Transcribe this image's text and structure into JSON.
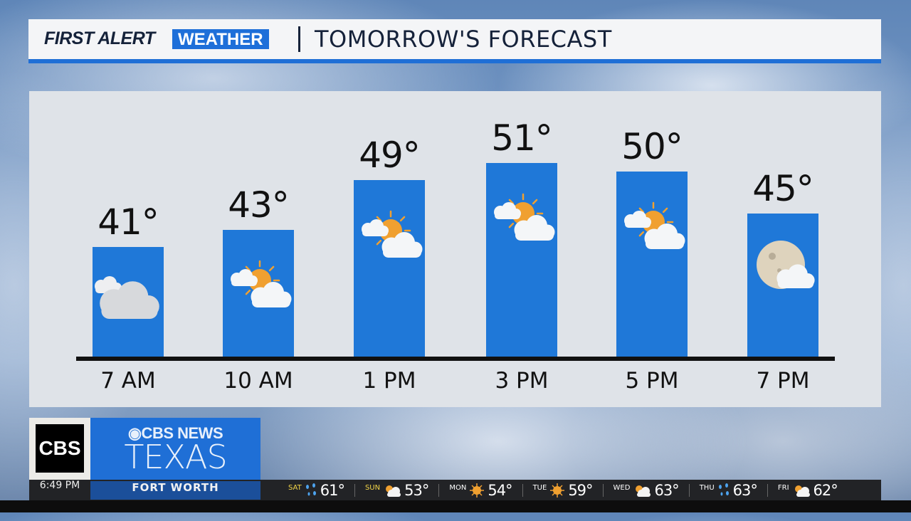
{
  "header": {
    "brand_first": "FIRST ALERT",
    "brand_weather": "WEATHER",
    "title": "TOMORROW'S FORECAST",
    "accent": "#1f6fd6"
  },
  "forecast": [
    {
      "time": "7 AM",
      "temp": "41°",
      "value": 41,
      "icon": "cloudy-icon"
    },
    {
      "time": "10 AM",
      "temp": "43°",
      "value": 43,
      "icon": "partly-sunny-icon"
    },
    {
      "time": "1 PM",
      "temp": "49°",
      "value": 49,
      "icon": "partly-sunny-icon"
    },
    {
      "time": "3 PM",
      "temp": "51°",
      "value": 51,
      "icon": "partly-sunny-icon"
    },
    {
      "time": "5 PM",
      "temp": "50°",
      "value": 50,
      "icon": "partly-sunny-icon"
    },
    {
      "time": "7 PM",
      "temp": "45°",
      "value": 45,
      "icon": "partly-cloudy-night-icon"
    }
  ],
  "station": {
    "logo": "CBS 11",
    "cbs": "◉CBS NEWS",
    "name": "TEXAS"
  },
  "ticker": {
    "clock": "6:49 PM",
    "city": "FORT WORTH",
    "days": [
      {
        "day": "SAT",
        "temp": "61°",
        "icon": "rain-icon",
        "weekend": true
      },
      {
        "day": "SUN",
        "temp": "53°",
        "icon": "partly-sunny-icon",
        "weekend": true
      },
      {
        "day": "MON",
        "temp": "54°",
        "icon": "sunny-icon",
        "weekend": false
      },
      {
        "day": "TUE",
        "temp": "59°",
        "icon": "sunny-icon",
        "weekend": false
      },
      {
        "day": "WED",
        "temp": "63°",
        "icon": "partly-sunny-icon",
        "weekend": false
      },
      {
        "day": "THU",
        "temp": "63°",
        "icon": "rain-icon",
        "weekend": false
      },
      {
        "day": "FRI",
        "temp": "62°",
        "icon": "partly-sunny-icon",
        "weekend": false
      }
    ]
  }
}
